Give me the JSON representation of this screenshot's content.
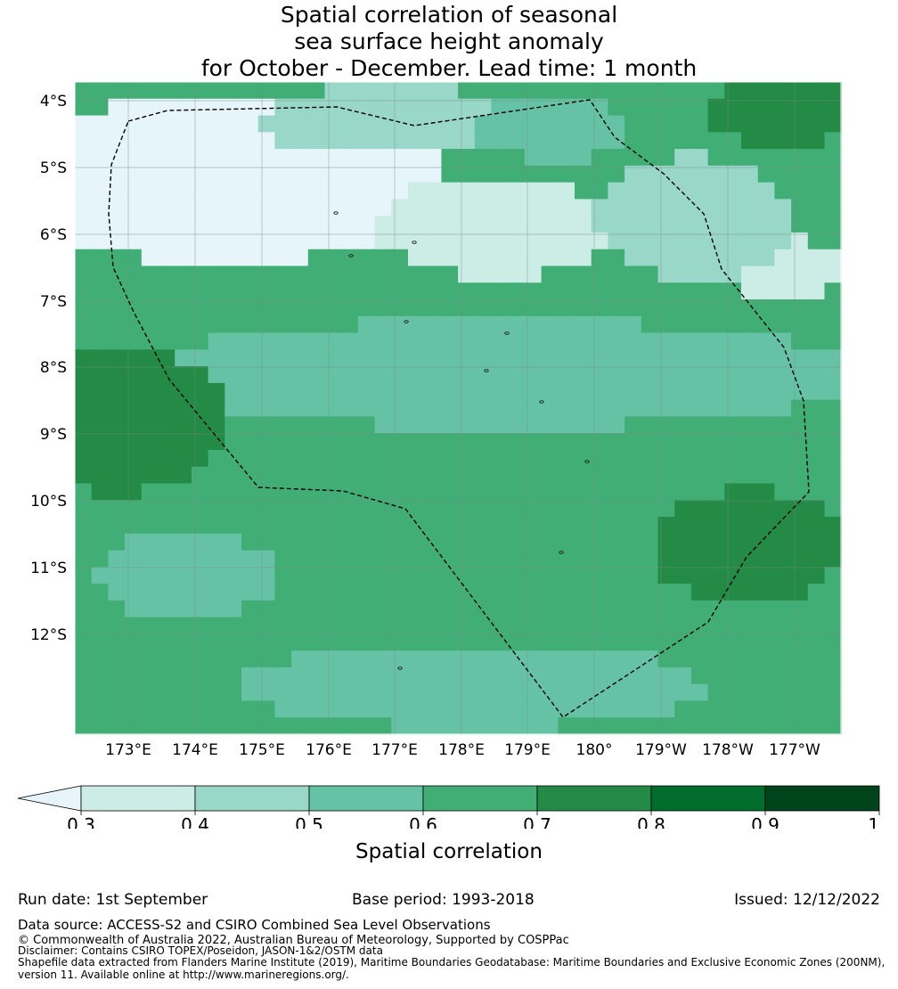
{
  "title": {
    "line1": "Spatial correlation of seasonal",
    "line2": "sea surface height anomaly",
    "line3": "for October - December. Lead time: 1 month"
  },
  "map": {
    "lat_labels": [
      "4°S",
      "5°S",
      "6°S",
      "7°S",
      "8°S",
      "9°S",
      "10°S",
      "11°S",
      "12°S"
    ],
    "lon_labels": [
      "173°E",
      "174°E",
      "175°E",
      "176°E",
      "177°E",
      "178°E",
      "179°E",
      "180°",
      "179°W",
      "178°W",
      "177°W"
    ],
    "field": "spatial correlation of seasonal sea surface height anomaly (October - December, lead time 1 month)"
  },
  "colorbar": {
    "label": "Spatial correlation",
    "ticks": [
      "0.3",
      "0.4",
      "0.5",
      "0.6",
      "0.7",
      "0.8",
      "0.9",
      "1"
    ],
    "colors": [
      "#e5f5f9",
      "#ccece6",
      "#99d8c9",
      "#66c2a4",
      "#41ae76",
      "#238b45",
      "#006d2c",
      "#00441b"
    ]
  },
  "footer": {
    "run_date": "Run date: 1st September",
    "base_period": "Base period: 1993-2018",
    "issued": "Issued: 12/12/2022",
    "data_source": "Data source: ACCESS-S2 and CSIRO Combined Sea Level Observations",
    "copyright": "© Commonwealth of Australia 2022, Australian Bureau of Meteorology, Supported by COSPPac",
    "disclaimer": "Disclaimer: Contains CSIRO TOPEX/Poseidon, JASON-1&2/OSTM data",
    "shapefile1": "Shapefile data extracted from Flanders Marine Institute (2019), Maritime Boundaries Geodatabase: Maritime Boundaries and Exclusive Economic Zones (200NM),",
    "shapefile2": "version 11. Available online at http://www.marineregions.org/."
  }
}
